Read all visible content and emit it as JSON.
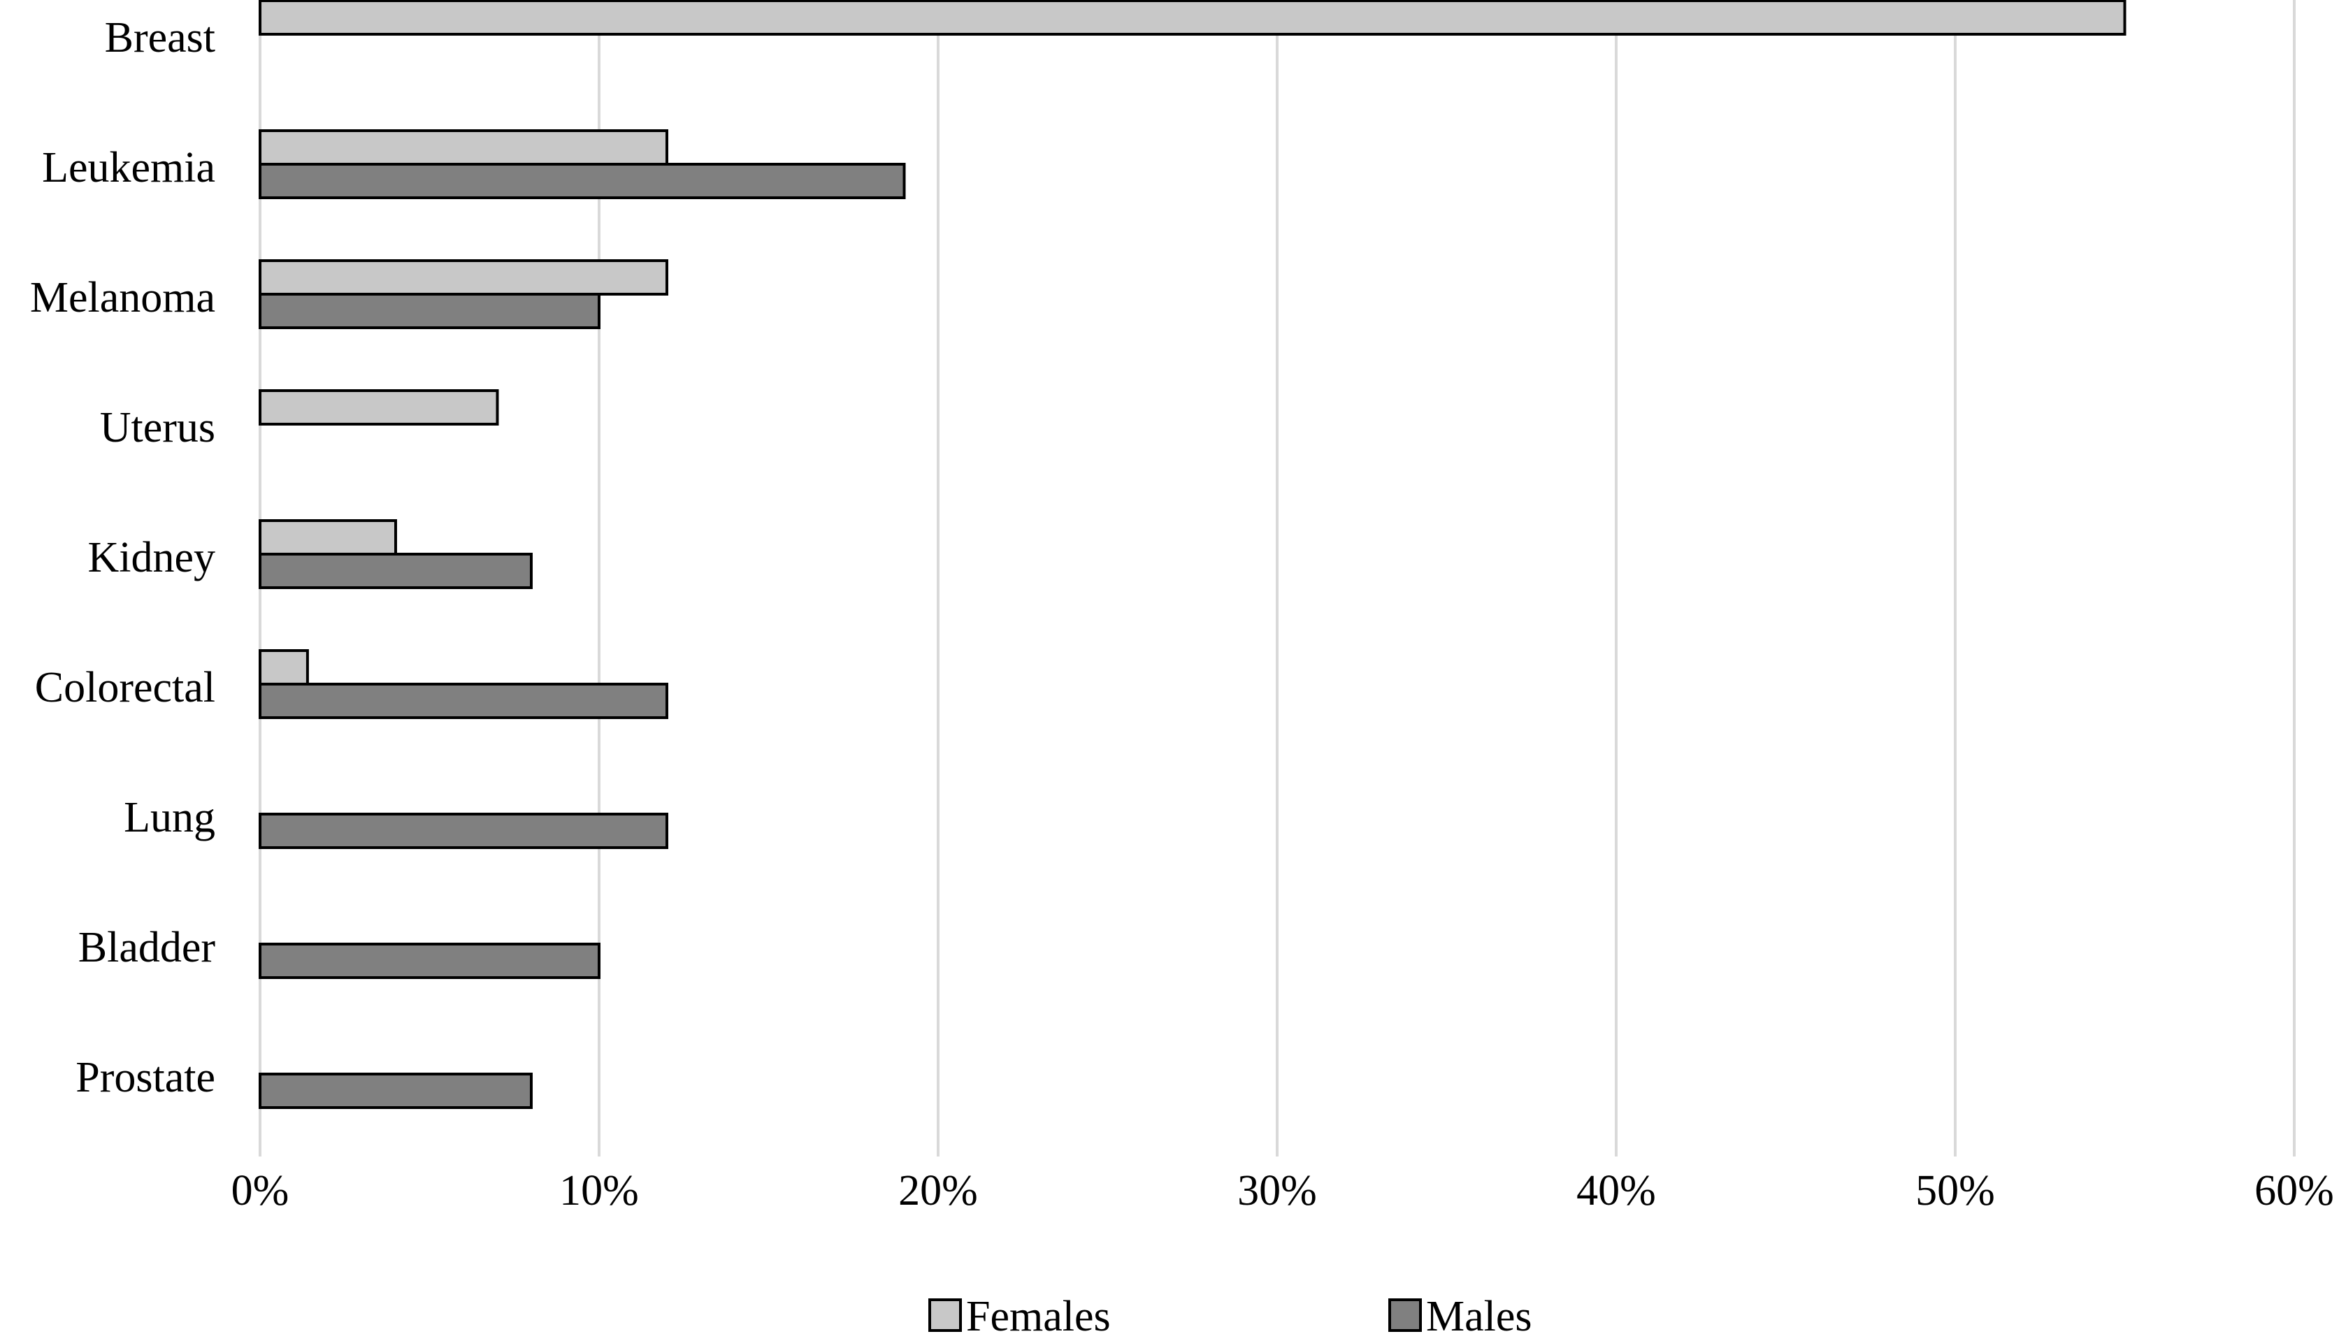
{
  "chart_data": {
    "type": "bar",
    "orientation": "horizontal",
    "categories": [
      "Breast",
      "Leukemia",
      "Melanoma",
      "Uterus",
      "Kidney",
      "Colorectal",
      "Lung",
      "Bladder",
      "Prostate"
    ],
    "series": [
      {
        "name": "Females",
        "values": [
          55,
          12,
          12,
          7,
          4,
          1.4,
          null,
          null,
          null
        ]
      },
      {
        "name": "Males",
        "values": [
          null,
          19,
          10,
          null,
          8,
          12,
          12,
          10,
          8
        ]
      }
    ],
    "xlim": [
      0,
      60
    ],
    "x_ticks": [
      "0%",
      "10%",
      "20%",
      "30%",
      "40%",
      "50%",
      "60%"
    ],
    "grid": "vertical",
    "legend_position": "bottom",
    "colors": {
      "Females": "#c8c8c8",
      "Males": "#808080",
      "grid": "#d9d9d9",
      "bar_edge": "#000000"
    }
  }
}
